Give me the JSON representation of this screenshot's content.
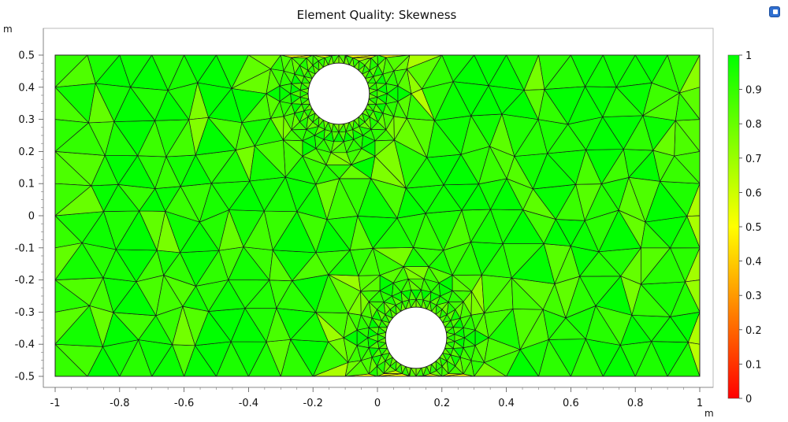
{
  "title": "Element Quality: Skewness",
  "y_unit": "m",
  "x_unit": "m",
  "colors": {
    "plot_border": "#444444",
    "mesh_edge": "#1a1a1a",
    "hole_fill": "#ffffff"
  },
  "chart_data": {
    "type": "heatmap",
    "title": "Element Quality: Skewness",
    "xlim": [
      -1,
      1
    ],
    "ylim": [
      -0.5,
      0.5
    ],
    "x_ticks": [
      "-1",
      "-0.8",
      "-0.6",
      "-0.4",
      "-0.2",
      "0",
      "0.2",
      "0.4",
      "0.6",
      "0.8",
      "1"
    ],
    "y_ticks": [
      "0.5",
      "0.4",
      "0.3",
      "0.2",
      "0.1",
      "0",
      "-0.1",
      "-0.2",
      "-0.3",
      "-0.4",
      "-0.5"
    ],
    "x_unit": "m",
    "y_unit": "m",
    "domain": {
      "x": [
        -1,
        1
      ],
      "y": [
        -0.5,
        0.5
      ]
    },
    "holes": [
      {
        "cx": -0.12,
        "cy": 0.38,
        "r": 0.095
      },
      {
        "cx": 0.12,
        "cy": -0.38,
        "r": 0.095
      }
    ],
    "colorbar": {
      "range": [
        0,
        1
      ],
      "ticks": [
        "1",
        "0.9",
        "0.8",
        "0.7",
        "0.6",
        "0.5",
        "0.4",
        "0.3",
        "0.2",
        "0.1",
        "0"
      ],
      "colormap": [
        "#ff0000",
        "#ff8000",
        "#ffff00",
        "#80ff00",
        "#00ff00"
      ]
    },
    "quality_summary": {
      "typical": 0.8,
      "min_observed": 0.5
    }
  }
}
